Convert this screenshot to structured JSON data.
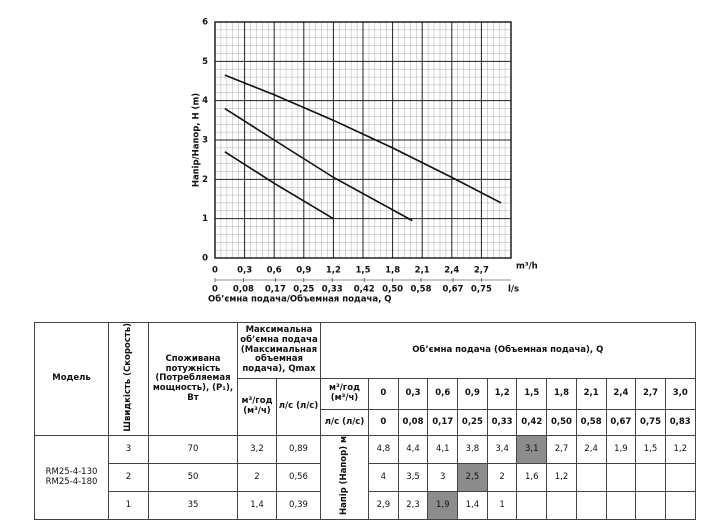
{
  "chart_data": {
    "type": "line",
    "ylabel": "Напір/Напор, H (m)",
    "xlabel": "Об’ємна подача/Объемная подача, Q",
    "xunit": "m³/h",
    "x2unit": "l/s",
    "xlim": [
      0,
      3
    ],
    "ylim": [
      0,
      6
    ],
    "xticks": [
      0,
      {
        "value": 0.3,
        "label": "0,3"
      },
      {
        "value": 0.6,
        "label": "0,6"
      },
      {
        "value": 0.9,
        "label": "0,9"
      },
      {
        "value": 1.2,
        "label": "1,2"
      },
      {
        "value": 1.5,
        "label": "1,5"
      },
      {
        "value": 1.8,
        "label": "1,8"
      },
      {
        "value": 2.1,
        "label": "2,1"
      },
      {
        "value": 2.4,
        "label": "2,4"
      },
      {
        "value": 2.7,
        "label": "2,7"
      }
    ],
    "x2lim": [
      0,
      0.8333
    ],
    "x2ticks": [
      0,
      {
        "value": 0.08,
        "label": "0,08"
      },
      {
        "value": 0.17,
        "label": "0,17"
      },
      {
        "value": 0.25,
        "label": "0,25"
      },
      {
        "value": 0.33,
        "label": "0,33"
      },
      {
        "value": 0.42,
        "label": "0,42"
      },
      {
        "value": 0.5,
        "label": "0,50"
      },
      {
        "value": 0.58,
        "label": "0,58"
      },
      {
        "value": 0.67,
        "label": "0,67"
      },
      {
        "value": 0.75,
        "label": "0,75"
      }
    ],
    "yticks": [
      0,
      1,
      2,
      3,
      4,
      5,
      6
    ],
    "grid": true,
    "series": [
      {
        "color": "#111111",
        "x": [
          0.1,
          0.6,
          1.2,
          1.8,
          2.4,
          2.9
        ],
        "values": [
          4.65,
          4.15,
          3.5,
          2.8,
          2.05,
          1.4
        ]
      },
      {
        "color": "#111111",
        "x": [
          0.1,
          0.6,
          1.2,
          1.6,
          2.0
        ],
        "values": [
          3.8,
          3.0,
          2.05,
          1.5,
          0.95
        ]
      },
      {
        "color": "#111111",
        "x": [
          0.1,
          0.6,
          1.2
        ],
        "values": [
          2.7,
          1.9,
          1.0
        ]
      }
    ]
  },
  "table": {
    "model_header": "Модель",
    "speed_header": "Швидкість (Скорость)",
    "power_header": "Споживана потужність (Потребляемая мощность), (P₁), Вт",
    "qmax_header": "Максимальна об’ємна подача (Максимальная объемная подача), Qmax",
    "qmax_m3_header": "м³/год (м³/ч)",
    "qmax_ls_header": "л/с (л/с)",
    "q_header": "Об’ємна подача (Объемная подача), Q",
    "q_m3_label": "м³/год (м³/ч)",
    "q_ls_label": "л/с (л/с)",
    "q_m3_values": [
      "0",
      "0,3",
      "0,6",
      "0,9",
      "1,2",
      "1,5",
      "1,8",
      "2,1",
      "2,4",
      "2,7",
      "3,0"
    ],
    "q_ls_values": [
      "0",
      "0,08",
      "0,17",
      "0,25",
      "0,33",
      "0,42",
      "0,50",
      "0,58",
      "0,67",
      "0,75",
      "0,83"
    ],
    "head_label": "Напір (Напор) м",
    "highlight_color": "#8c8c8c",
    "models": [
      "RM25-4-130",
      "RM25-4-180"
    ],
    "rows": [
      {
        "speed": "3",
        "power": "70",
        "qmax_m3": "3,2",
        "qmax_ls": "0,89",
        "highlight": 5,
        "heads": [
          "4,8",
          "4,4",
          "4,1",
          "3,8",
          "3,4",
          "3,1",
          "2,7",
          "2,4",
          "1,9",
          "1,5",
          "1,2"
        ]
      },
      {
        "speed": "2",
        "power": "50",
        "qmax_m3": "2",
        "qmax_ls": "0,56",
        "highlight": 3,
        "heads": [
          "4",
          "3,5",
          "3",
          "2,5",
          "2",
          "1,6",
          "1,2"
        ]
      },
      {
        "speed": "1",
        "power": "35",
        "qmax_m3": "1,4",
        "qmax_ls": "0,39",
        "highlight": 2,
        "heads": [
          "2,9",
          "2,3",
          "1,9",
          "1,4",
          "1"
        ]
      }
    ]
  }
}
